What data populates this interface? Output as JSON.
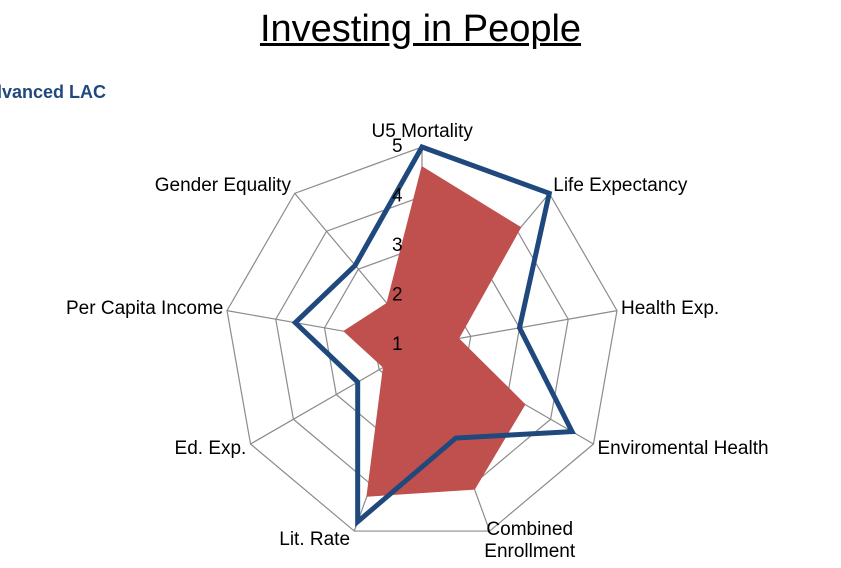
{
  "chart_data": {
    "type": "radar",
    "title": "Investing in People",
    "categories": [
      "U5 Mortality",
      "Life Expectancy",
      "Health Exp.",
      "Enviromental Health",
      "Combined Enrollment",
      "Lit. Rate",
      "Ed. Exp.",
      "Per Capita Income",
      "Gender Equality"
    ],
    "series": [
      {
        "color": "#c0504d",
        "values": [
          4.6,
          4.1,
          1.75,
          3.4,
          4.1,
          4.25,
          1.9,
          2.6,
          2.1
        ]
      },
      {
        "name": "Advanced LAC",
        "color": "#1f497d",
        "values": [
          5,
          5,
          3,
          4.5,
          3,
          4.8,
          2.5,
          3.6,
          3.1
        ]
      }
    ],
    "ylim": [
      1,
      5
    ],
    "yticks": [
      1,
      2,
      3,
      4,
      5
    ],
    "grid": true
  }
}
